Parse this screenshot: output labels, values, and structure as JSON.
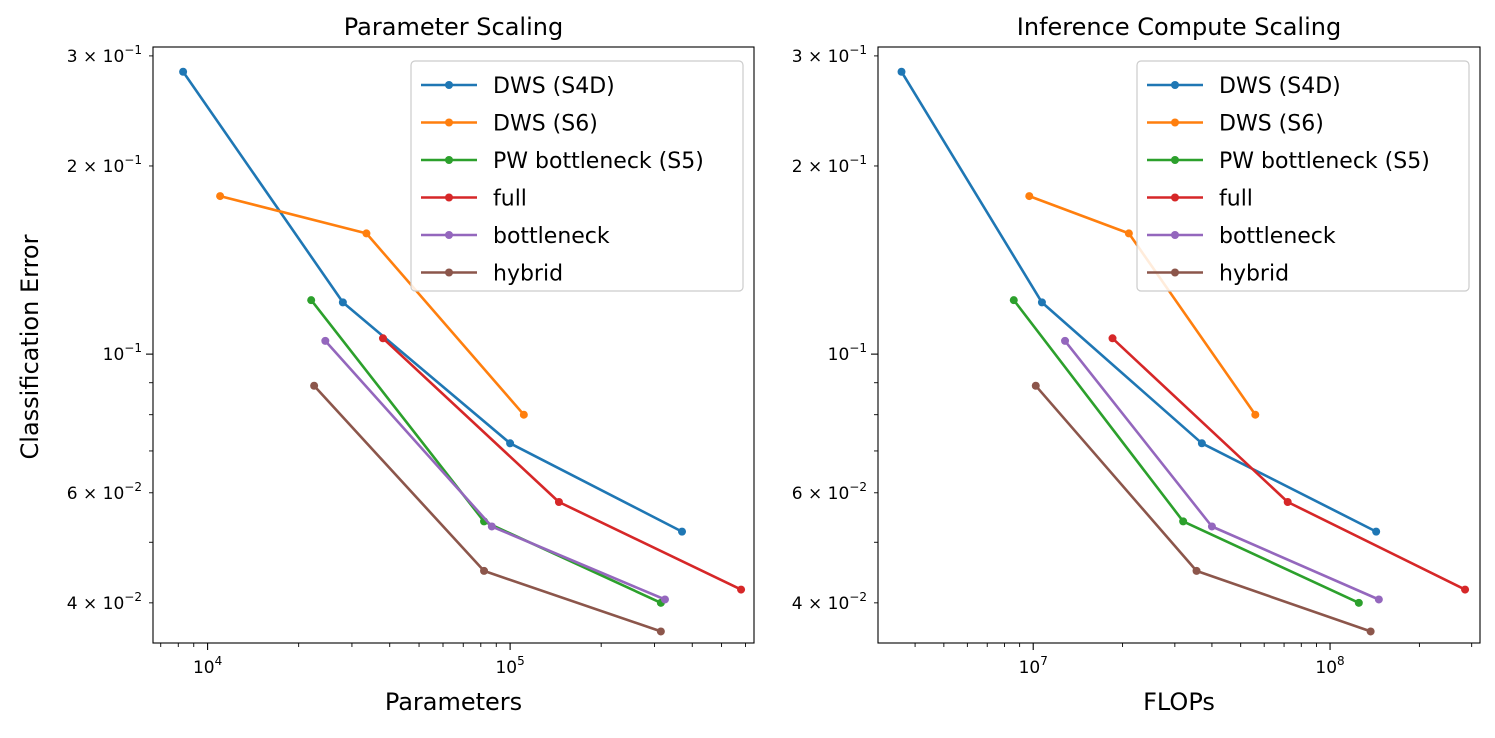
{
  "figure": {
    "shared_ylabel": "Classification Error",
    "legend_location": "upper right"
  },
  "colors": {
    "dws_s4d": "#1f77b4",
    "dws_s6": "#ff7f0e",
    "pw_s5": "#2ca02c",
    "full": "#d62728",
    "bottleneck": "#9467bd",
    "hybrid": "#8c564b"
  },
  "chart_data": [
    {
      "type": "line",
      "title": "Parameter Scaling",
      "xlabel": "Parameters",
      "ylabel": "Classification Error",
      "xscale": "log",
      "yscale": "log",
      "xlim": [
        6600,
        640000
      ],
      "ylim": [
        0.0345,
        0.31
      ],
      "xticks": [
        {
          "value": 10000,
          "base": "10",
          "exp": "4"
        },
        {
          "value": 100000,
          "base": "10",
          "exp": "5"
        }
      ],
      "yticks": [
        {
          "value": 0.3,
          "mant": "3",
          "exp": "−1"
        },
        {
          "value": 0.2,
          "mant": "2",
          "exp": "−1"
        },
        {
          "value": 0.1,
          "mant": "10",
          "exp": "−1",
          "plain": true
        },
        {
          "value": 0.06,
          "mant": "6",
          "exp": "−2"
        },
        {
          "value": 0.04,
          "mant": "4",
          "exp": "−2"
        }
      ],
      "legend": "top-right",
      "series": [
        {
          "name": "DWS (S4D)",
          "color_key": "dws_s4d",
          "points": [
            [
              8300,
              0.283
            ],
            [
              28000,
              0.121
            ],
            [
              100000,
              0.072
            ],
            [
              370000,
              0.052
            ]
          ]
        },
        {
          "name": "DWS (S6)",
          "color_key": "dws_s6",
          "points": [
            [
              11000,
              0.179
            ],
            [
              33500,
              0.156
            ],
            [
              111000,
              0.08
            ]
          ]
        },
        {
          "name": "PW bottleneck (S5)",
          "color_key": "pw_s5",
          "points": [
            [
              22000,
              0.122
            ],
            [
              82000,
              0.054
            ],
            [
              315000,
              0.04
            ]
          ]
        },
        {
          "name": "full",
          "color_key": "full",
          "points": [
            [
              38000,
              0.106
            ],
            [
              145000,
              0.058
            ],
            [
              580000,
              0.042
            ]
          ]
        },
        {
          "name": "bottleneck",
          "color_key": "bottleneck",
          "points": [
            [
              24500,
              0.105
            ],
            [
              87000,
              0.053
            ],
            [
              325000,
              0.0405
            ]
          ]
        },
        {
          "name": "hybrid",
          "color_key": "hybrid",
          "points": [
            [
              22500,
              0.089
            ],
            [
              82000,
              0.045
            ],
            [
              315000,
              0.036
            ]
          ]
        }
      ]
    },
    {
      "type": "line",
      "title": "Inference Compute Scaling",
      "xlabel": "FLOPs",
      "ylabel": "",
      "xscale": "log",
      "yscale": "log",
      "xlim": [
        3000000,
        320000000
      ],
      "ylim": [
        0.0345,
        0.31
      ],
      "xticks": [
        {
          "value": 10000000,
          "base": "10",
          "exp": "7"
        },
        {
          "value": 100000000,
          "base": "10",
          "exp": "8"
        }
      ],
      "yticks": [
        {
          "value": 0.3,
          "mant": "3",
          "exp": "−1"
        },
        {
          "value": 0.2,
          "mant": "2",
          "exp": "−1"
        },
        {
          "value": 0.1,
          "mant": "10",
          "exp": "−1",
          "plain": true
        },
        {
          "value": 0.06,
          "mant": "6",
          "exp": "−2"
        },
        {
          "value": 0.04,
          "mant": "4",
          "exp": "−2"
        }
      ],
      "legend": "top-right",
      "series": [
        {
          "name": "DWS (S4D)",
          "color_key": "dws_s4d",
          "points": [
            [
              3600000,
              0.283
            ],
            [
              10700000,
              0.121
            ],
            [
              37000000,
              0.072
            ],
            [
              143000000,
              0.052
            ]
          ]
        },
        {
          "name": "DWS (S6)",
          "color_key": "dws_s6",
          "points": [
            [
              9700000,
              0.179
            ],
            [
              21000000,
              0.156
            ],
            [
              56000000,
              0.08
            ]
          ]
        },
        {
          "name": "PW bottleneck (S5)",
          "color_key": "pw_s5",
          "points": [
            [
              8600000,
              0.122
            ],
            [
              32000000,
              0.054
            ],
            [
              125000000,
              0.04
            ]
          ]
        },
        {
          "name": "full",
          "color_key": "full",
          "points": [
            [
              18500000,
              0.106
            ],
            [
              72000000,
              0.058
            ],
            [
              285000000,
              0.042
            ]
          ]
        },
        {
          "name": "bottleneck",
          "color_key": "bottleneck",
          "points": [
            [
              12800000,
              0.105
            ],
            [
              40000000,
              0.053
            ],
            [
              146000000,
              0.0405
            ]
          ]
        },
        {
          "name": "hybrid",
          "color_key": "hybrid",
          "points": [
            [
              10200000,
              0.089
            ],
            [
              35500000,
              0.045
            ],
            [
              137000000,
              0.036
            ]
          ]
        }
      ]
    }
  ]
}
